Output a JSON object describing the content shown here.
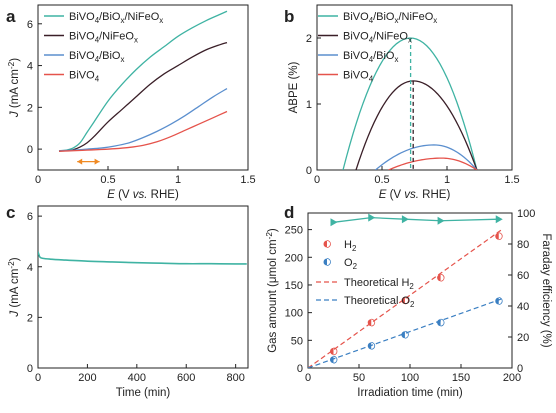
{
  "chart_data": [
    {
      "panel": "a",
      "type": "line",
      "xlabel": "E (V vs. RHE)",
      "ylabel": "J (mA cm⁻²)",
      "xlim": [
        0.0,
        1.5
      ],
      "ylim": [
        -1.0,
        6.9
      ],
      "xticks": [
        0.0,
        0.5,
        1.0,
        1.5
      ],
      "yticks": [
        0,
        2,
        4,
        6
      ],
      "legend_position": "top-left",
      "series": [
        {
          "name": "BiVO₄/BiOₓ/NiFeOₓ",
          "color": "#3fb3a3",
          "x": [
            0.15,
            0.2,
            0.25,
            0.3,
            0.35,
            0.4,
            0.5,
            0.6,
            0.7,
            0.8,
            0.9,
            1.0,
            1.1,
            1.2,
            1.3,
            1.35
          ],
          "y": [
            -0.08,
            -0.05,
            0.05,
            0.3,
            0.8,
            1.3,
            2.3,
            3.1,
            3.8,
            4.4,
            4.9,
            5.4,
            5.8,
            6.15,
            6.45,
            6.6
          ]
        },
        {
          "name": "BiVO₄/NiFeOₓ",
          "color": "#3a1f28",
          "x": [
            0.15,
            0.2,
            0.25,
            0.3,
            0.35,
            0.4,
            0.5,
            0.6,
            0.7,
            0.8,
            0.9,
            1.0,
            1.1,
            1.2,
            1.3,
            1.35
          ],
          "y": [
            -0.1,
            -0.08,
            -0.03,
            0.1,
            0.3,
            0.6,
            1.3,
            1.9,
            2.5,
            3.1,
            3.6,
            4.0,
            4.4,
            4.75,
            5.0,
            5.1
          ]
        },
        {
          "name": "BiVO₄/BiOₓ",
          "color": "#5b8fce",
          "x": [
            0.15,
            0.25,
            0.35,
            0.45,
            0.55,
            0.65,
            0.75,
            0.85,
            0.95,
            1.05,
            1.15,
            1.25,
            1.35
          ],
          "y": [
            -0.08,
            -0.05,
            0.0,
            0.05,
            0.15,
            0.3,
            0.55,
            0.85,
            1.2,
            1.6,
            2.05,
            2.5,
            2.9
          ]
        },
        {
          "name": "BiVO₄",
          "color": "#e5534b",
          "x": [
            0.15,
            0.25,
            0.35,
            0.45,
            0.55,
            0.65,
            0.75,
            0.85,
            0.95,
            1.05,
            1.15,
            1.25,
            1.35
          ],
          "y": [
            -0.1,
            -0.08,
            -0.05,
            -0.02,
            0.02,
            0.08,
            0.18,
            0.35,
            0.6,
            0.9,
            1.2,
            1.5,
            1.8
          ]
        }
      ],
      "annotation": {
        "type": "double-arrow",
        "color": "#f08a24",
        "x": [
          0.28,
          0.44
        ],
        "y": -0.6
      }
    },
    {
      "panel": "b",
      "type": "line",
      "xlabel": "E (V vs. RHE)",
      "ylabel": "ABPE (%)",
      "xlim": [
        0.0,
        1.5
      ],
      "ylim": [
        0.0,
        2.5
      ],
      "xticks": [
        0.0,
        0.5,
        1.0,
        1.5
      ],
      "yticks": [
        0,
        1,
        2
      ],
      "legend_position": "top-left",
      "series": [
        {
          "name": "BiVO₄/BiOₓ/NiFeOₓ",
          "color": "#3fb3a3",
          "x_start": 0.2,
          "x_end": 1.23,
          "peak_x": 0.72,
          "peak_y": 2.0
        },
        {
          "name": "BiVO₄/NiFeOₓ",
          "color": "#3a1f28",
          "x_start": 0.3,
          "x_end": 1.23,
          "peak_x": 0.74,
          "peak_y": 1.35
        },
        {
          "name": "BiVO₄/BiOₓ",
          "color": "#5b8fce",
          "x_start": 0.45,
          "x_end": 1.23,
          "peak_x": 0.9,
          "peak_y": 0.38
        },
        {
          "name": "BiVO₄",
          "color": "#e5534b",
          "x_start": 0.55,
          "x_end": 1.23,
          "peak_x": 0.96,
          "peak_y": 0.18
        }
      ],
      "dashed_markers": [
        {
          "x": 0.72,
          "y": 2.0,
          "color": "#3fb3a3"
        },
        {
          "x": 0.74,
          "y": 1.35,
          "color": "#3a1f28"
        }
      ]
    },
    {
      "panel": "c",
      "type": "line",
      "xlabel": "Time (min)",
      "ylabel": "J (mA cm⁻²)",
      "xlim": [
        0,
        850
      ],
      "ylim": [
        0,
        6.4
      ],
      "xticks": [
        0,
        200,
        400,
        600,
        800
      ],
      "yticks": [
        0,
        2,
        4,
        6
      ],
      "series": [
        {
          "color": "#3fb3a3",
          "x": [
            0,
            3,
            8,
            20,
            50,
            100,
            200,
            300,
            400,
            500,
            600,
            700,
            800,
            845
          ],
          "y": [
            4.6,
            4.5,
            4.38,
            4.33,
            4.3,
            4.27,
            4.22,
            4.19,
            4.16,
            4.14,
            4.12,
            4.12,
            4.11,
            4.11
          ]
        }
      ]
    },
    {
      "panel": "d",
      "type": "scatter",
      "xlabel": "Irradiation time (min)",
      "ylabel": "Gas amount (μmol cm⁻²)",
      "y2label": "Faraday efficiency (%)",
      "xlim": [
        0,
        200
      ],
      "ylim": [
        0,
        280
      ],
      "y2lim": [
        0,
        100
      ],
      "xticks": [
        0,
        50,
        100,
        150,
        200
      ],
      "yticks": [
        0,
        50,
        100,
        150,
        200,
        250
      ],
      "y2ticks": [
        0,
        20,
        40,
        60,
        80,
        100
      ],
      "legend_position": "upper-left",
      "series": [
        {
          "name": "H₂",
          "color": "#e5534b",
          "marker": "left-half-circle",
          "x": [
            25,
            62,
            95,
            130,
            187
          ],
          "y": [
            30,
            82,
            122,
            163,
            238
          ]
        },
        {
          "name": "O₂",
          "color": "#3a7fc2",
          "marker": "left-half-circle",
          "x": [
            25,
            62,
            95,
            130,
            187
          ],
          "y": [
            15,
            40,
            60,
            82,
            121
          ]
        },
        {
          "name": "Theoretical H₂",
          "color": "#e5534b",
          "style": "dashed-line",
          "x": [
            0,
            190
          ],
          "y": [
            0,
            250
          ]
        },
        {
          "name": "Theoretical O₂",
          "color": "#3a7fc2",
          "style": "dashed-line",
          "x": [
            0,
            190
          ],
          "y": [
            0,
            125
          ]
        },
        {
          "color": "#3fb3a3",
          "axis": "right",
          "marker": "right-triangle",
          "x": [
            25,
            62,
            95,
            130,
            187
          ],
          "y": [
            94,
            97,
            96,
            95,
            96
          ]
        }
      ]
    }
  ]
}
